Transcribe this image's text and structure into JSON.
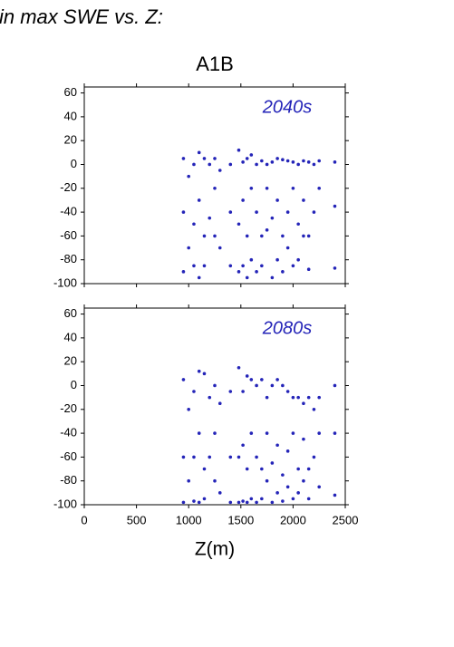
{
  "header": {
    "text": "in max SWE vs. Z:"
  },
  "chart_data": [
    {
      "type": "scatter",
      "title": "A1B",
      "annotation": "2040s",
      "color": "#2424b8",
      "xlim": [
        0,
        2500
      ],
      "xticks": [
        0,
        500,
        1000,
        1500,
        2000,
        2500
      ],
      "show_xtick_labels": false,
      "ylim": [
        -100,
        65
      ],
      "yticks": [
        60,
        40,
        20,
        0,
        -20,
        -40,
        -60,
        -80,
        -100
      ],
      "x": [
        950,
        950,
        950,
        1000,
        1000,
        1050,
        1050,
        1050,
        1100,
        1100,
        1100,
        1150,
        1150,
        1150,
        1200,
        1200,
        1250,
        1250,
        1250,
        1300,
        1300,
        1400,
        1400,
        1400,
        1480,
        1480,
        1480,
        1520,
        1520,
        1520,
        1560,
        1560,
        1560,
        1600,
        1600,
        1600,
        1650,
        1650,
        1650,
        1700,
        1700,
        1700,
        1750,
        1750,
        1750,
        1800,
        1800,
        1800,
        1850,
        1850,
        1850,
        1900,
        1900,
        1900,
        1950,
        1950,
        1950,
        2000,
        2000,
        2000,
        2050,
        2050,
        2050,
        2100,
        2100,
        2100,
        2150,
        2150,
        2150,
        2200,
        2200,
        2250,
        2250,
        2400,
        2400,
        2400
      ],
      "y": [
        5,
        -40,
        -90,
        -10,
        -70,
        0,
        -50,
        -85,
        10,
        -30,
        -95,
        5,
        -60,
        -85,
        0,
        -45,
        5,
        -20,
        -60,
        -5,
        -70,
        0,
        -40,
        -85,
        12,
        -50,
        -90,
        2,
        -30,
        -85,
        5,
        -60,
        -95,
        8,
        -20,
        -80,
        0,
        -40,
        -90,
        3,
        -60,
        -85,
        0,
        -20,
        -55,
        2,
        -45,
        -95,
        5,
        -30,
        -80,
        4,
        -60,
        -90,
        3,
        -40,
        -70,
        2,
        -20,
        -85,
        0,
        -50,
        -80,
        3,
        -30,
        -60,
        2,
        -60,
        -88,
        0,
        -40,
        3,
        -20,
        2,
        -35,
        -87
      ]
    },
    {
      "type": "scatter",
      "annotation": "2080s",
      "color": "#2424b8",
      "x_label": "Z(m)",
      "xlim": [
        0,
        2500
      ],
      "xticks": [
        0,
        500,
        1000,
        1500,
        2000,
        2500
      ],
      "show_xtick_labels": true,
      "ylim": [
        -100,
        65
      ],
      "yticks": [
        60,
        40,
        20,
        0,
        -20,
        -40,
        -60,
        -80,
        -100
      ],
      "x": [
        950,
        950,
        950,
        1000,
        1000,
        1050,
        1050,
        1050,
        1100,
        1100,
        1100,
        1150,
        1150,
        1150,
        1200,
        1200,
        1250,
        1250,
        1250,
        1300,
        1300,
        1400,
        1400,
        1400,
        1480,
        1480,
        1480,
        1520,
        1520,
        1520,
        1560,
        1560,
        1560,
        1600,
        1600,
        1600,
        1650,
        1650,
        1650,
        1700,
        1700,
        1700,
        1750,
        1750,
        1750,
        1800,
        1800,
        1800,
        1850,
        1850,
        1850,
        1900,
        1900,
        1900,
        1950,
        1950,
        1950,
        2000,
        2000,
        2000,
        2050,
        2050,
        2050,
        2100,
        2100,
        2100,
        2150,
        2150,
        2150,
        2200,
        2200,
        2250,
        2250,
        2250,
        2400,
        2400,
        2400
      ],
      "y": [
        5,
        -60,
        -98,
        -20,
        -80,
        -5,
        -60,
        -97,
        12,
        -40,
        -98,
        10,
        -70,
        -95,
        -10,
        -60,
        0,
        -40,
        -80,
        -15,
        -90,
        -5,
        -60,
        -98,
        15,
        -60,
        -98,
        -5,
        -50,
        -97,
        8,
        -70,
        -98,
        5,
        -40,
        -95,
        0,
        -60,
        -98,
        5,
        -70,
        -95,
        -10,
        -40,
        -80,
        0,
        -65,
        -98,
        5,
        -50,
        -90,
        0,
        -75,
        -97,
        -5,
        -55,
        -85,
        -10,
        -40,
        -95,
        -10,
        -70,
        -90,
        -15,
        -45,
        -80,
        -10,
        -70,
        -95,
        -20,
        -60,
        -10,
        -40,
        -85,
        0,
        -40,
        -92
      ]
    }
  ]
}
